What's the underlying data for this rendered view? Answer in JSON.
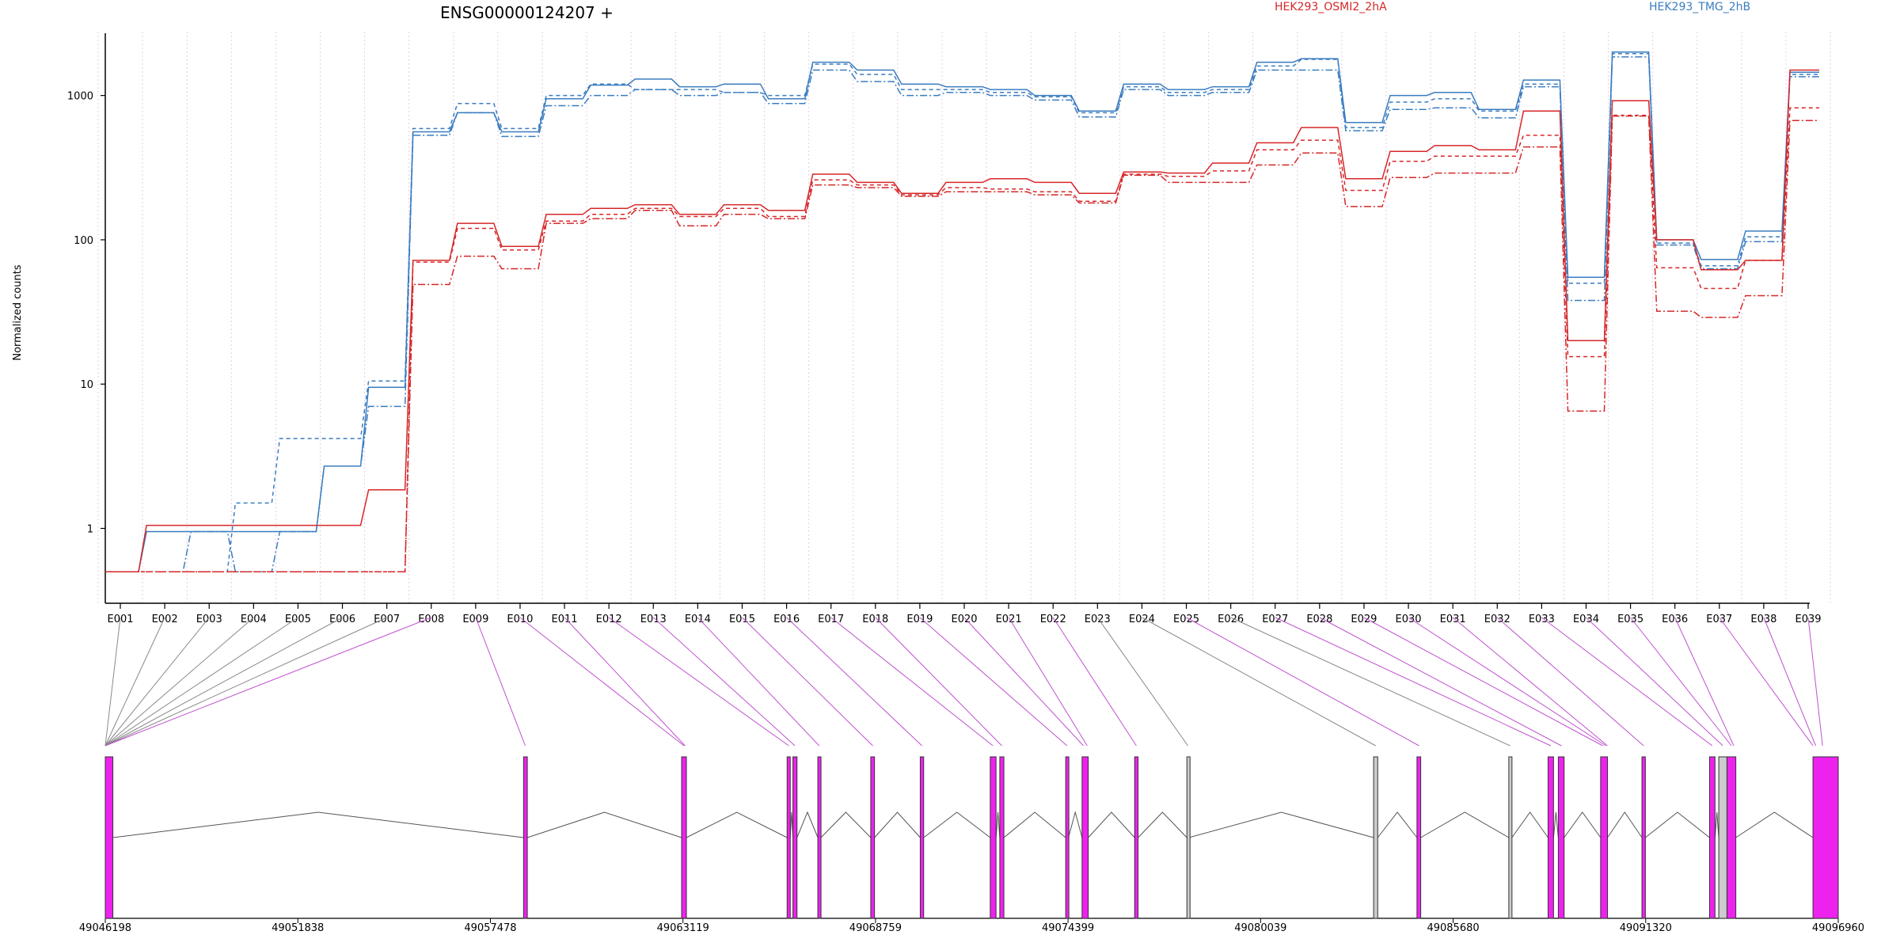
{
  "chart_data": {
    "type": "line",
    "title": "ENSG00000124207 +",
    "ylabel": "Normalized counts",
    "yscale": "log",
    "ylim": [
      0.4,
      2600
    ],
    "yticks": [
      1,
      10,
      100,
      1000
    ],
    "ytick_labels": [
      "1",
      "10",
      "100",
      "1000"
    ],
    "legend_position": "top",
    "legend": [
      {
        "label": "HEK293_OSMI2_2hA",
        "color": "#d62728"
      },
      {
        "label": "HEK293_TMG_2hB",
        "color": "#3a7dc0"
      }
    ],
    "exons": [
      "E001",
      "E002",
      "E003",
      "E004",
      "E005",
      "E006",
      "E007",
      "E008",
      "E009",
      "E010",
      "E011",
      "E012",
      "E013",
      "E014",
      "E015",
      "E016",
      "E017",
      "E018",
      "E019",
      "E020",
      "E021",
      "E022",
      "E023",
      "E024",
      "E025",
      "E026",
      "E027",
      "E028",
      "E029",
      "E030",
      "E031",
      "E032",
      "E033",
      "E034",
      "E035",
      "E036",
      "E037",
      "E038",
      "E039"
    ],
    "series": [
      {
        "group": "HEK293_TMG_2hB",
        "color": "#3a7dc0",
        "style": "solid",
        "values": [
          0.5,
          0.95,
          0.95,
          0.95,
          0.95,
          2.7,
          9.5,
          560,
          760,
          560,
          950,
          1180,
          1300,
          1150,
          1200,
          950,
          1700,
          1500,
          1200,
          1150,
          1100,
          1000,
          780,
          1200,
          1100,
          1150,
          1700,
          1800,
          650,
          1000,
          1050,
          800,
          1280,
          55,
          2000,
          100,
          73,
          115,
          1450
        ]
      },
      {
        "group": "HEK293_TMG_2hB",
        "color": "#3a7dc0",
        "style": "dashed",
        "values": [
          0.5,
          0.5,
          0.5,
          1.5,
          4.2,
          4.2,
          10.5,
          590,
          880,
          590,
          1000,
          1200,
          1100,
          1100,
          1050,
          1000,
          1650,
          1400,
          1100,
          1100,
          1050,
          980,
          760,
          1150,
          1050,
          1100,
          1600,
          1780,
          600,
          900,
          950,
          780,
          1200,
          50,
          1950,
          95,
          66,
          105,
          1400
        ]
      },
      {
        "group": "HEK293_TMG_2hB",
        "color": "#3a7dc0",
        "style": "dashdot",
        "values": [
          0.5,
          0.5,
          0.95,
          0.5,
          0.95,
          2.7,
          7,
          530,
          760,
          520,
          850,
          1000,
          1100,
          1000,
          1050,
          880,
          1500,
          1250,
          1000,
          1050,
          1000,
          930,
          710,
          1100,
          1000,
          1050,
          1500,
          1500,
          570,
          800,
          820,
          700,
          1150,
          38,
          1850,
          92,
          63,
          97,
          1350
        ]
      },
      {
        "group": "HEK293_OSMI2_2hA",
        "color": "#d62728",
        "style": "solid",
        "values": [
          0.5,
          1.05,
          1.05,
          1.05,
          1.05,
          1.05,
          1.85,
          72,
          130,
          90,
          150,
          165,
          175,
          150,
          175,
          160,
          285,
          250,
          210,
          250,
          265,
          250,
          210,
          295,
          290,
          340,
          470,
          600,
          265,
          410,
          450,
          420,
          780,
          20,
          920,
          100,
          62,
          72,
          1500
        ]
      },
      {
        "group": "HEK293_OSMI2_2hA",
        "color": "#d62728",
        "style": "dashed",
        "values": [
          0.5,
          0.5,
          0.5,
          0.5,
          0.5,
          0.5,
          0.5,
          70,
          120,
          85,
          135,
          150,
          165,
          145,
          165,
          145,
          260,
          240,
          205,
          230,
          225,
          215,
          185,
          285,
          275,
          300,
          420,
          490,
          220,
          350,
          380,
          380,
          530,
          15.5,
          730,
          64,
          46,
          72,
          820
        ]
      },
      {
        "group": "HEK293_OSMI2_2hA",
        "color": "#d62728",
        "style": "dashdot",
        "values": [
          0.5,
          0.5,
          0.5,
          0.5,
          0.5,
          0.5,
          0.5,
          49,
          77,
          63,
          130,
          140,
          160,
          125,
          150,
          140,
          240,
          230,
          200,
          215,
          215,
          205,
          180,
          280,
          250,
          250,
          330,
          400,
          170,
          270,
          290,
          290,
          440,
          6.5,
          720,
          32,
          29,
          41,
          670
        ]
      }
    ],
    "gene_model": {
      "start": 49046198,
      "end": 49096960,
      "tick_labels": [
        "49046198",
        "49051838",
        "49057478",
        "49063119",
        "49068759",
        "49074399",
        "49080039",
        "49085680",
        "49091320",
        "49096960"
      ],
      "exon_blocks": [
        {
          "start": 49046198,
          "end": 49046420,
          "type": "tested"
        },
        {
          "start": 49058450,
          "end": 49058560,
          "type": "tested"
        },
        {
          "start": 49063080,
          "end": 49063220,
          "type": "tested"
        },
        {
          "start": 49066170,
          "end": 49066260,
          "type": "tested"
        },
        {
          "start": 49066340,
          "end": 49066460,
          "type": "tested"
        },
        {
          "start": 49067070,
          "end": 49067160,
          "type": "tested"
        },
        {
          "start": 49068620,
          "end": 49068730,
          "type": "tested"
        },
        {
          "start": 49070070,
          "end": 49070170,
          "type": "tested"
        },
        {
          "start": 49072120,
          "end": 49072290,
          "type": "tested"
        },
        {
          "start": 49072400,
          "end": 49072520,
          "type": "tested"
        },
        {
          "start": 49074330,
          "end": 49074410,
          "type": "tested"
        },
        {
          "start": 49074810,
          "end": 49074990,
          "type": "tested"
        },
        {
          "start": 49076350,
          "end": 49076450,
          "type": "tested"
        },
        {
          "start": 49077880,
          "end": 49077940,
          "type": "untested"
        },
        {
          "start": 49083350,
          "end": 49083470,
          "type": "untested"
        },
        {
          "start": 49084620,
          "end": 49084730,
          "type": "tested"
        },
        {
          "start": 49087310,
          "end": 49087400,
          "type": "untested"
        },
        {
          "start": 49088460,
          "end": 49088620,
          "type": "tested"
        },
        {
          "start": 49088760,
          "end": 49088930,
          "type": "tested"
        },
        {
          "start": 49090000,
          "end": 49090200,
          "type": "tested"
        },
        {
          "start": 49091210,
          "end": 49091310,
          "type": "tested"
        },
        {
          "start": 49093190,
          "end": 49093350,
          "type": "tested"
        },
        {
          "start": 49093460,
          "end": 49093700,
          "type": "untested"
        },
        {
          "start": 49093700,
          "end": 49093960,
          "type": "tested"
        },
        {
          "start": 49096220,
          "end": 49096960,
          "type": "tested"
        }
      ],
      "connector_targets": [
        49046198,
        49046198,
        49046198,
        49046198,
        49046198,
        49046198,
        49046198,
        49046198,
        49058500,
        49063150,
        49063180,
        49066220,
        49066400,
        49067110,
        49068680,
        49070120,
        49072200,
        49072460,
        49074370,
        49074850,
        49074960,
        49076400,
        49077910,
        49083410,
        49084680,
        49087350,
        49088540,
        49088850,
        49090060,
        49090150,
        49090200,
        49091260,
        49093270,
        49093580,
        49093830,
        49093900,
        49096220,
        49096300,
        49096500
      ],
      "colors": {
        "tested": "#ee22ee",
        "untested": "#cccccc",
        "connector_tested": "#c050d0",
        "connector_untested": "#888888"
      }
    }
  }
}
